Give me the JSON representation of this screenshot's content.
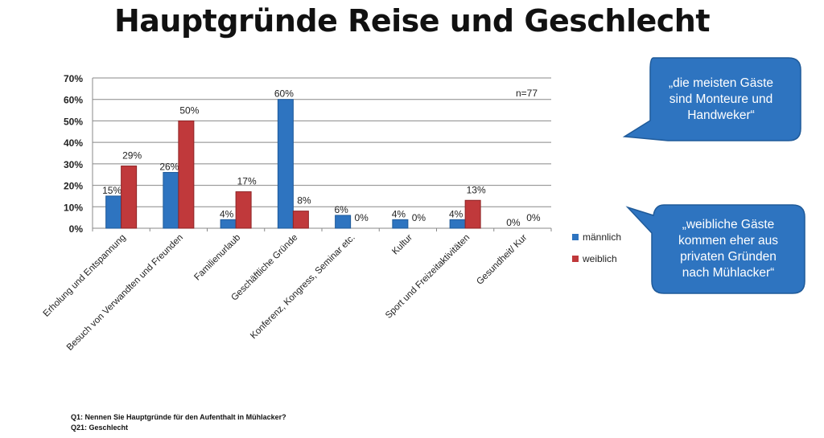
{
  "title": "Hauptgründe Reise und Geschlecht",
  "chart_data": {
    "type": "bar",
    "title": "Hauptgründe Reise und Geschlecht",
    "categories": [
      "Erholung und Entspannung",
      "Besuch von Verwandten und Freunden",
      "Familienurlaub",
      "Geschäftliche Gründe",
      "Konferenz, Kongress, Seminar etc.",
      "Kultur",
      "Sport und Freizeitaktivitäten",
      "Gesundheit/ Kur"
    ],
    "series": [
      {
        "name": "männlich",
        "color": "#2e74c0",
        "values": [
          15,
          26,
          4,
          60,
          6,
          4,
          4,
          0
        ]
      },
      {
        "name": "weiblich",
        "color": "#c0393b",
        "values": [
          29,
          50,
          17,
          8,
          0,
          0,
          13,
          0
        ]
      }
    ],
    "yticks": [
      "0%",
      "10%",
      "20%",
      "30%",
      "40%",
      "50%",
      "60%",
      "70%"
    ],
    "ylim": [
      0,
      70
    ],
    "grid": true,
    "legend": "right",
    "annotation": "n=77"
  },
  "callouts": [
    {
      "text": "„die meisten Gäste sind Monteure und Handweker“",
      "color": "#2e74c0"
    },
    {
      "text": "„weibliche Gäste kommen eher aus privaten Gründen nach Mühlacker“",
      "color": "#2e74c0"
    }
  ],
  "notes": [
    "Q1: Nennen Sie Hauptgründe für den Aufenthalt in Mühlacker?",
    "Q21: Geschlecht"
  ]
}
